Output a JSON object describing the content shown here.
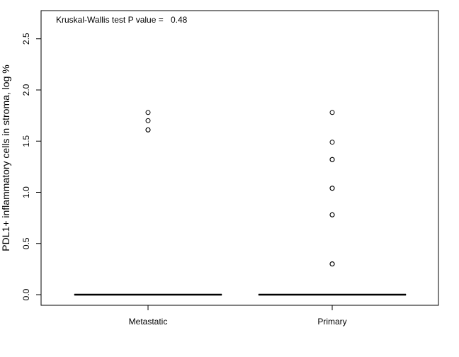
{
  "chart_data": {
    "type": "boxplot",
    "title": "",
    "xlabel": "",
    "ylabel": "PDL1+ inflammatory cells in stroma, log %",
    "ylim": [
      -0.1,
      2.75
    ],
    "yticks": [
      "0.0",
      "0.5",
      "1.0",
      "1.5",
      "2.0",
      "2.5"
    ],
    "categories": [
      "Metastatic",
      "Primary"
    ],
    "boxes": [
      {
        "name": "Metastatic",
        "min": 0,
        "q1": 0,
        "median": 0,
        "q3": 0,
        "max": 0,
        "outliers": [
          1.61,
          1.61,
          1.7,
          1.78
        ]
      },
      {
        "name": "Primary",
        "min": 0,
        "q1": 0,
        "median": 0,
        "q3": 0,
        "max": 0,
        "outliers": [
          0.3,
          0.3,
          0.78,
          0.78,
          1.04,
          1.04,
          1.32,
          1.32,
          1.49,
          1.78
        ]
      }
    ],
    "annotation": {
      "label": "Kruskal-Wallis test P value =",
      "value": "0.48"
    },
    "legend": "none",
    "grid": false
  }
}
